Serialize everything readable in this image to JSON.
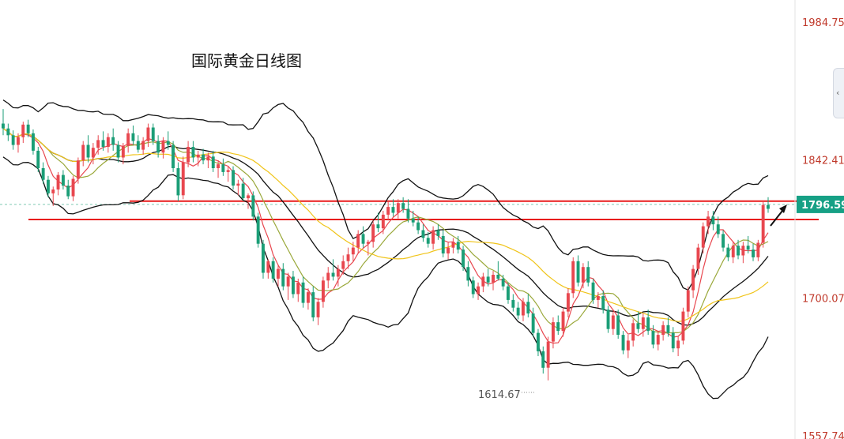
{
  "chart_data": {
    "type": "candlestick",
    "title": "国际黄金日线图",
    "y_axis": {
      "side": "right",
      "ticks": [
        "1984.75",
        "1842.41",
        "1700.07",
        "1557.74"
      ],
      "current_price": "1796.59"
    },
    "annotations": {
      "low_label": "1614.67"
    },
    "lines": {
      "resistance": 1800,
      "support": 1781
    },
    "colors": {
      "up": "#e8474f",
      "down": "#1b9e77",
      "band": "#111111",
      "ma_short": "#e8474f",
      "ma_mid": "#9aa83a",
      "ma_long": "#f0c419",
      "level_line": "#e81c1c",
      "price_tag": "#16a085",
      "axis_text": "#c0392b"
    },
    "candles": [
      [
        1880,
        1895,
        1868,
        1875
      ],
      [
        1875,
        1880,
        1862,
        1868
      ],
      [
        1868,
        1873,
        1853,
        1858
      ],
      [
        1858,
        1870,
        1850,
        1866
      ],
      [
        1866,
        1882,
        1860,
        1879
      ],
      [
        1879,
        1884,
        1866,
        1870
      ],
      [
        1870,
        1874,
        1848,
        1852
      ],
      [
        1852,
        1856,
        1830,
        1834
      ],
      [
        1834,
        1840,
        1818,
        1822
      ],
      [
        1822,
        1826,
        1804,
        1808
      ],
      [
        1808,
        1815,
        1795,
        1812
      ],
      [
        1812,
        1830,
        1806,
        1827
      ],
      [
        1827,
        1832,
        1812,
        1816
      ],
      [
        1816,
        1822,
        1802,
        1805
      ],
      [
        1805,
        1826,
        1800,
        1823
      ],
      [
        1823,
        1845,
        1818,
        1842
      ],
      [
        1842,
        1862,
        1836,
        1858
      ],
      [
        1858,
        1868,
        1840,
        1845
      ],
      [
        1845,
        1860,
        1838,
        1855
      ],
      [
        1855,
        1868,
        1848,
        1863
      ],
      [
        1863,
        1872,
        1852,
        1856
      ],
      [
        1856,
        1870,
        1850,
        1866
      ],
      [
        1866,
        1875,
        1852,
        1858
      ],
      [
        1858,
        1862,
        1840,
        1845
      ],
      [
        1845,
        1860,
        1838,
        1857
      ],
      [
        1857,
        1875,
        1850,
        1870
      ],
      [
        1870,
        1878,
        1858,
        1862
      ],
      [
        1862,
        1868,
        1850,
        1853
      ],
      [
        1853,
        1866,
        1848,
        1862
      ],
      [
        1862,
        1880,
        1856,
        1876
      ],
      [
        1876,
        1880,
        1858,
        1862
      ],
      [
        1862,
        1868,
        1845,
        1850
      ],
      [
        1850,
        1866,
        1844,
        1862
      ],
      [
        1862,
        1872,
        1853,
        1858
      ],
      [
        1858,
        1862,
        1830,
        1834
      ],
      [
        1834,
        1840,
        1800,
        1806
      ],
      [
        1806,
        1846,
        1802,
        1840
      ],
      [
        1840,
        1862,
        1835,
        1856
      ],
      [
        1856,
        1862,
        1840,
        1845
      ],
      [
        1845,
        1852,
        1836,
        1848
      ],
      [
        1848,
        1854,
        1838,
        1842
      ],
      [
        1842,
        1850,
        1834,
        1846
      ],
      [
        1846,
        1852,
        1830,
        1834
      ],
      [
        1834,
        1842,
        1824,
        1838
      ],
      [
        1838,
        1844,
        1826,
        1830
      ],
      [
        1830,
        1836,
        1820,
        1832
      ],
      [
        1832,
        1836,
        1812,
        1816
      ],
      [
        1816,
        1822,
        1806,
        1818
      ],
      [
        1818,
        1824,
        1800,
        1803
      ],
      [
        1803,
        1808,
        1792,
        1806
      ],
      [
        1806,
        1810,
        1780,
        1784
      ],
      [
        1784,
        1788,
        1752,
        1756
      ],
      [
        1756,
        1760,
        1720,
        1726
      ],
      [
        1726,
        1740,
        1720,
        1738
      ],
      [
        1738,
        1742,
        1716,
        1720
      ],
      [
        1720,
        1734,
        1712,
        1730
      ],
      [
        1730,
        1736,
        1708,
        1712
      ],
      [
        1712,
        1726,
        1698,
        1722
      ],
      [
        1722,
        1728,
        1700,
        1704
      ],
      [
        1704,
        1720,
        1696,
        1716
      ],
      [
        1716,
        1722,
        1690,
        1695
      ],
      [
        1695,
        1710,
        1688,
        1706
      ],
      [
        1706,
        1712,
        1676,
        1680
      ],
      [
        1680,
        1700,
        1672,
        1696
      ],
      [
        1696,
        1722,
        1690,
        1718
      ],
      [
        1718,
        1732,
        1710,
        1726
      ],
      [
        1726,
        1740,
        1718,
        1722
      ],
      [
        1722,
        1734,
        1712,
        1730
      ],
      [
        1730,
        1744,
        1724,
        1738
      ],
      [
        1738,
        1752,
        1730,
        1745
      ],
      [
        1745,
        1758,
        1738,
        1752
      ],
      [
        1752,
        1770,
        1746,
        1766
      ],
      [
        1766,
        1774,
        1752,
        1756
      ],
      [
        1756,
        1760,
        1744,
        1758
      ],
      [
        1758,
        1780,
        1752,
        1776
      ],
      [
        1776,
        1788,
        1768,
        1772
      ],
      [
        1772,
        1790,
        1766,
        1786
      ],
      [
        1786,
        1800,
        1780,
        1794
      ],
      [
        1794,
        1802,
        1784,
        1788
      ],
      [
        1788,
        1802,
        1782,
        1798
      ],
      [
        1798,
        1804,
        1788,
        1792
      ],
      [
        1792,
        1802,
        1778,
        1782
      ],
      [
        1782,
        1790,
        1774,
        1778
      ],
      [
        1778,
        1784,
        1766,
        1770
      ],
      [
        1770,
        1776,
        1758,
        1762
      ],
      [
        1762,
        1768,
        1752,
        1756
      ],
      [
        1756,
        1774,
        1750,
        1770
      ],
      [
        1770,
        1776,
        1760,
        1764
      ],
      [
        1764,
        1770,
        1742,
        1746
      ],
      [
        1746,
        1758,
        1740,
        1752
      ],
      [
        1752,
        1762,
        1746,
        1758
      ],
      [
        1758,
        1764,
        1746,
        1750
      ],
      [
        1750,
        1754,
        1728,
        1732
      ],
      [
        1732,
        1738,
        1712,
        1718
      ],
      [
        1718,
        1722,
        1700,
        1704
      ],
      [
        1704,
        1716,
        1698,
        1712
      ],
      [
        1712,
        1726,
        1706,
        1722
      ],
      [
        1722,
        1730,
        1712,
        1716
      ],
      [
        1716,
        1728,
        1708,
        1724
      ],
      [
        1724,
        1738,
        1718,
        1720
      ],
      [
        1720,
        1724,
        1708,
        1712
      ],
      [
        1712,
        1716,
        1694,
        1698
      ],
      [
        1698,
        1704,
        1686,
        1690
      ],
      [
        1690,
        1696,
        1678,
        1682
      ],
      [
        1682,
        1700,
        1676,
        1696
      ],
      [
        1696,
        1704,
        1680,
        1684
      ],
      [
        1684,
        1690,
        1660,
        1664
      ],
      [
        1664,
        1668,
        1640,
        1645
      ],
      [
        1645,
        1650,
        1622,
        1628
      ],
      [
        1628,
        1660,
        1615,
        1655
      ],
      [
        1655,
        1680,
        1648,
        1675
      ],
      [
        1675,
        1682,
        1662,
        1666
      ],
      [
        1666,
        1690,
        1660,
        1686
      ],
      [
        1686,
        1710,
        1680,
        1705
      ],
      [
        1705,
        1742,
        1700,
        1738
      ],
      [
        1738,
        1744,
        1712,
        1716
      ],
      [
        1716,
        1736,
        1710,
        1732
      ],
      [
        1732,
        1738,
        1712,
        1716
      ],
      [
        1716,
        1720,
        1694,
        1698
      ],
      [
        1698,
        1706,
        1690,
        1702
      ],
      [
        1702,
        1708,
        1684,
        1688
      ],
      [
        1688,
        1692,
        1664,
        1668
      ],
      [
        1668,
        1686,
        1662,
        1682
      ],
      [
        1682,
        1688,
        1658,
        1662
      ],
      [
        1662,
        1666,
        1642,
        1646
      ],
      [
        1646,
        1662,
        1638,
        1656
      ],
      [
        1656,
        1678,
        1650,
        1674
      ],
      [
        1674,
        1686,
        1664,
        1668
      ],
      [
        1668,
        1684,
        1660,
        1680
      ],
      [
        1680,
        1688,
        1662,
        1666
      ],
      [
        1666,
        1672,
        1648,
        1652
      ],
      [
        1652,
        1666,
        1646,
        1662
      ],
      [
        1662,
        1676,
        1656,
        1672
      ],
      [
        1672,
        1680,
        1660,
        1664
      ],
      [
        1664,
        1670,
        1644,
        1648
      ],
      [
        1648,
        1660,
        1640,
        1656
      ],
      [
        1656,
        1690,
        1652,
        1686
      ],
      [
        1686,
        1712,
        1680,
        1708
      ],
      [
        1708,
        1734,
        1700,
        1730
      ],
      [
        1730,
        1756,
        1724,
        1752
      ],
      [
        1752,
        1778,
        1746,
        1774
      ],
      [
        1774,
        1790,
        1766,
        1784
      ],
      [
        1784,
        1790,
        1770,
        1776
      ],
      [
        1776,
        1784,
        1762,
        1766
      ],
      [
        1766,
        1770,
        1748,
        1752
      ],
      [
        1752,
        1756,
        1738,
        1742
      ],
      [
        1742,
        1758,
        1736,
        1754
      ],
      [
        1754,
        1760,
        1740,
        1744
      ],
      [
        1744,
        1758,
        1736,
        1754
      ],
      [
        1754,
        1764,
        1746,
        1750
      ],
      [
        1750,
        1756,
        1738,
        1742
      ],
      [
        1742,
        1760,
        1738,
        1757
      ],
      [
        1757,
        1800,
        1752,
        1796
      ],
      [
        1796,
        1804,
        1788,
        1792
      ]
    ]
  }
}
